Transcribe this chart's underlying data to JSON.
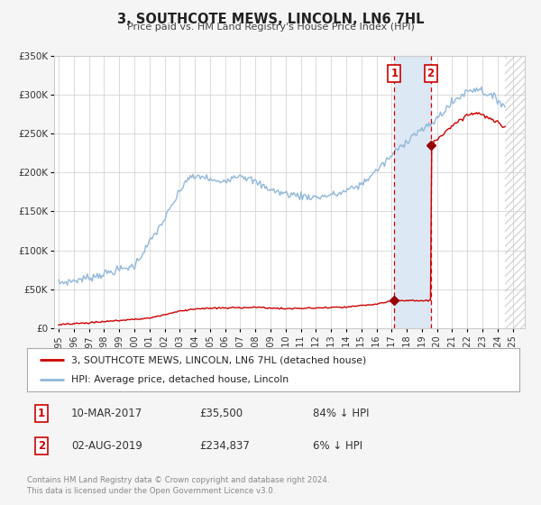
{
  "title": "3, SOUTHCOTE MEWS, LINCOLN, LN6 7HL",
  "subtitle": "Price paid vs. HM Land Registry's House Price Index (HPI)",
  "ylim": [
    0,
    350000
  ],
  "yticks": [
    0,
    50000,
    100000,
    150000,
    200000,
    250000,
    300000,
    350000
  ],
  "ytick_labels": [
    "£0",
    "£50K",
    "£100K",
    "£150K",
    "£200K",
    "£250K",
    "£300K",
    "£350K"
  ],
  "xlim_start": 1995.0,
  "xlim_end": 2025.5,
  "xticks": [
    1995,
    1996,
    1997,
    1998,
    1999,
    2000,
    2001,
    2002,
    2003,
    2004,
    2005,
    2006,
    2007,
    2008,
    2009,
    2010,
    2011,
    2012,
    2013,
    2014,
    2015,
    2016,
    2017,
    2018,
    2019,
    2020,
    2021,
    2022,
    2023,
    2024,
    2025
  ],
  "bg_color": "#f5f5f5",
  "plot_bg_color": "#ffffff",
  "hpi_color": "#92b8d8",
  "price_color": "#cc0000",
  "marker_color": "#990000",
  "vline_color": "#cc0000",
  "highlight_color": "#dde8f5",
  "hatch_start": 2024.5,
  "sale1_date": 2017.19,
  "sale2_date": 2019.58,
  "sale1_price": 35500,
  "sale2_price": 234837,
  "legend_label_price": "3, SOUTHCOTE MEWS, LINCOLN, LN6 7HL (detached house)",
  "legend_label_hpi": "HPI: Average price, detached house, Lincoln",
  "note1_label": "1",
  "note1_date": "10-MAR-2017",
  "note1_price": "£35,500",
  "note1_pct": "84% ↓ HPI",
  "note2_label": "2",
  "note2_date": "02-AUG-2019",
  "note2_price": "£234,837",
  "note2_pct": "6% ↓ HPI",
  "footer": "Contains HM Land Registry data © Crown copyright and database right 2024.\nThis data is licensed under the Open Government Licence v3.0."
}
